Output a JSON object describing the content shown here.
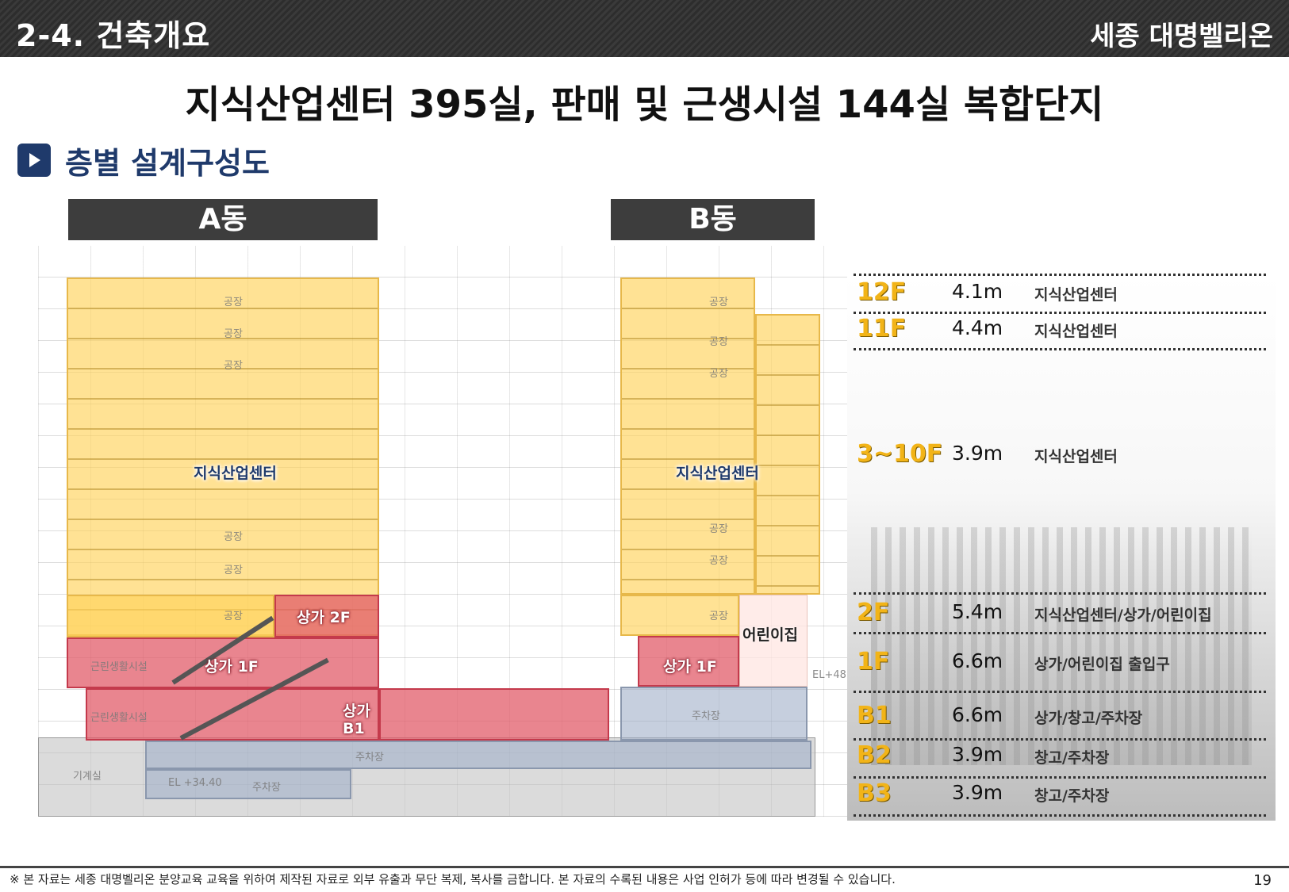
{
  "header": {
    "section_title": "2-4. 건축개요",
    "brand": "세종 대명벨리온"
  },
  "main_title": "지식산업센터 395실,  판매 및 근생시설 144실 복합단지",
  "subheading": "층별 설계구성도",
  "buildings": {
    "a_label": "A동",
    "b_label": "B동"
  },
  "drawing_labels": {
    "a_knowledge": "지식산업센터",
    "a_shop_2f": "상가 2F",
    "a_shop_1f": "상가 1F",
    "a_shop_b1": "상가\nB1",
    "b_knowledge": "지식산업센터",
    "b_daycare": "어린이집",
    "b_shop_1f": "상가 1F",
    "factory": "공장",
    "neighborhood": "근린생활시설",
    "parking": "주차장",
    "machine_room": "기계실",
    "el_a": "EL +34.40",
    "el_b": "EL+48"
  },
  "floors": [
    {
      "floor": "12F",
      "height": "4.1m",
      "use": "지식산업센터"
    },
    {
      "floor": "11F",
      "height": "4.4m",
      "use": "지식산업센터"
    },
    {
      "floor": "3~10F",
      "height": "3.9m",
      "use": "지식산업센터"
    },
    {
      "floor": "2F",
      "height": "5.4m",
      "use": "지식산업센터/상가/어린이집"
    },
    {
      "floor": "1F",
      "height": "6.6m",
      "use": "상가/어린이집 출입구"
    },
    {
      "floor": "B1",
      "height": "6.6m",
      "use": "상가/창고/주차장"
    },
    {
      "floor": "B2",
      "height": "3.9m",
      "use": "창고/주차장"
    },
    {
      "floor": "B3",
      "height": "3.9m",
      "use": "창고/주차장"
    }
  ],
  "colors": {
    "header_bg": "#333333",
    "accent_navy": "#1f3a6b",
    "floor_label": "#f2b418",
    "knowledge_center": "#ffd25a",
    "retail": "#e25c6a",
    "parking": "#a0afc8"
  },
  "footer": {
    "note": "※ 본 자료는 세종 대명벨리온 분양교육 교육을 위하여 제작된 자료로 외부 유출과 무단 복제, 복사를 금합니다. 본 자료의 수록된 내용은 사업 인허가 등에 따라 변경될 수 있습니다.",
    "page_number": "19"
  }
}
